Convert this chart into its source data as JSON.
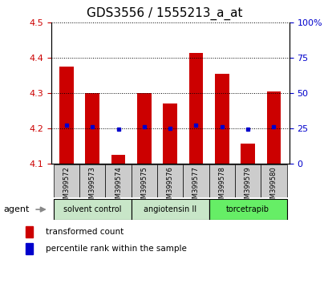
{
  "title": "GDS3556 / 1555213_a_at",
  "samples": [
    "GSM399572",
    "GSM399573",
    "GSM399574",
    "GSM399575",
    "GSM399576",
    "GSM399577",
    "GSM399578",
    "GSM399579",
    "GSM399580"
  ],
  "transformed_counts": [
    4.375,
    4.3,
    4.125,
    4.3,
    4.27,
    4.415,
    4.355,
    4.155,
    4.305
  ],
  "percentile_ranks": [
    27,
    26,
    24,
    26,
    25,
    27,
    26,
    24,
    26
  ],
  "bar_bottom": 4.1,
  "ylim_left": [
    4.1,
    4.5
  ],
  "ylim_right": [
    0,
    100
  ],
  "yticks_left": [
    4.1,
    4.2,
    4.3,
    4.4,
    4.5
  ],
  "yticks_right": [
    0,
    25,
    50,
    75,
    100
  ],
  "ytick_labels_right": [
    "0",
    "25",
    "50",
    "75",
    "100%"
  ],
  "agent_groups": [
    {
      "label": "solvent control",
      "indices": [
        0,
        1,
        2
      ],
      "color": "#c8e6c8"
    },
    {
      "label": "angiotensin II",
      "indices": [
        3,
        4,
        5
      ],
      "color": "#c8e6c8"
    },
    {
      "label": "torcetrapib",
      "indices": [
        6,
        7,
        8
      ],
      "color": "#66ee66"
    }
  ],
  "bar_color": "#cc0000",
  "dot_color": "#0000cc",
  "grid_color": "#000000",
  "title_fontsize": 11,
  "tick_label_color_left": "#cc0000",
  "tick_label_color_right": "#0000cc",
  "bar_width": 0.55,
  "xtick_bg_color": "#cccccc"
}
